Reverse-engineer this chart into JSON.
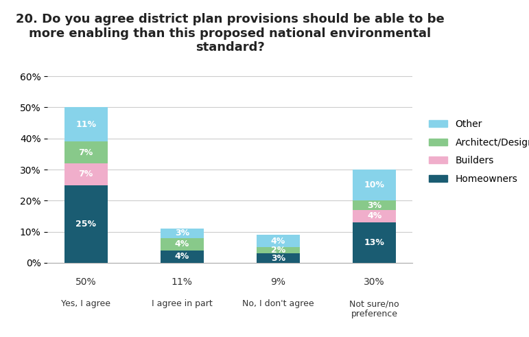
{
  "title": "20. Do you agree district plan provisions should be able to be\nmore enabling than this proposed national environmental\nstandard?",
  "categories": [
    "Yes, I agree",
    "I agree in part",
    "No, I don't agree",
    "Not sure/no\npreference"
  ],
  "totals": [
    "50%",
    "11%",
    "9%",
    "30%"
  ],
  "series": {
    "Homeowners": [
      25,
      4,
      3,
      13
    ],
    "Builders": [
      7,
      0,
      0,
      4
    ],
    "Architect/Designer": [
      7,
      4,
      2,
      3
    ],
    "Other": [
      11,
      3,
      4,
      10
    ]
  },
  "colors": {
    "Homeowners": "#1a5c72",
    "Builders": "#f0aecb",
    "Architect/Designer": "#88c98a",
    "Other": "#87d3ea"
  },
  "ylim": [
    0,
    65
  ],
  "yticks": [
    0,
    10,
    20,
    30,
    40,
    50,
    60
  ],
  "ytick_labels": [
    "0%",
    "10%",
    "20%",
    "30%",
    "40%",
    "50%",
    "60%"
  ],
  "bar_width": 0.45,
  "label_fontsize": 9,
  "title_fontsize": 13,
  "legend_fontsize": 10,
  "background_color": "#ffffff",
  "grid_color": "#cccccc"
}
